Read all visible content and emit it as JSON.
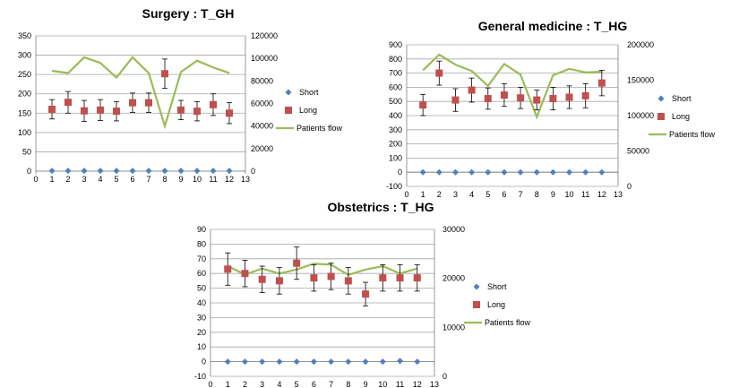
{
  "colors": {
    "short": "#4f81bd",
    "long": "#c0504d",
    "flow": "#9bbb59",
    "grid": "#a6a6a6",
    "axis": "#808080",
    "errorbar": "#000000"
  },
  "chart_data": [
    {
      "type": "scatter",
      "title": "Surgery : T_GH",
      "x": [
        1,
        2,
        3,
        4,
        5,
        6,
        7,
        8,
        9,
        10,
        11,
        12
      ],
      "xlim": [
        0,
        13
      ],
      "xticks": [
        "0",
        "1",
        "2",
        "3",
        "4",
        "5",
        "6",
        "7",
        "8",
        "9",
        "10",
        "11",
        "12",
        "13"
      ],
      "ylim": [
        0,
        350
      ],
      "yticks": [
        "0",
        "50",
        "100",
        "150",
        "200",
        "250",
        "300",
        "350"
      ],
      "y2lim": [
        0,
        120000
      ],
      "y2ticks": [
        "0",
        "20000",
        "40000",
        "60000",
        "80000",
        "100000",
        "120000"
      ],
      "legend": "right",
      "series": [
        {
          "name": "Short",
          "axis": "left",
          "marker": "diamond",
          "values": [
            1,
            1,
            1,
            1,
            1,
            1,
            1,
            1,
            1,
            1,
            1,
            1
          ]
        },
        {
          "name": "Long",
          "axis": "left",
          "marker": "square",
          "values": [
            160,
            178,
            156,
            158,
            155,
            177,
            177,
            252,
            158,
            155,
            172,
            150
          ],
          "errors": [
            25,
            28,
            27,
            27,
            25,
            25,
            25,
            38,
            25,
            25,
            28,
            27
          ]
        },
        {
          "name": "Patients flow",
          "axis": "right",
          "marker": "line",
          "values": [
            89000,
            87000,
            101000,
            96000,
            83000,
            101000,
            87000,
            40000,
            88000,
            98000,
            92000,
            87000
          ]
        }
      ]
    },
    {
      "type": "scatter",
      "title": "General medicine : T_HG",
      "x": [
        1,
        2,
        3,
        4,
        5,
        6,
        7,
        8,
        9,
        10,
        11,
        12
      ],
      "xlim": [
        0,
        13
      ],
      "xticks": [
        "0",
        "1",
        "2",
        "3",
        "4",
        "5",
        "6",
        "7",
        "8",
        "9",
        "10",
        "11",
        "12",
        "13"
      ],
      "ylim": [
        -100,
        900
      ],
      "yticks": [
        "-100",
        "0",
        "100",
        "200",
        "300",
        "400",
        "500",
        "600",
        "700",
        "800",
        "900"
      ],
      "y2lim": [
        0,
        200000
      ],
      "y2ticks": [
        "0",
        "50000",
        "100000",
        "150000",
        "200000"
      ],
      "y2ticksAt": [
        0,
        50000,
        100000,
        150000,
        200000
      ],
      "y2range": [
        0,
        200000
      ],
      "legend": "right",
      "series": [
        {
          "name": "Short",
          "axis": "left",
          "marker": "diamond",
          "values": [
            0,
            0,
            0,
            0,
            0,
            0,
            0,
            0,
            0,
            0,
            0,
            0
          ]
        },
        {
          "name": "Long",
          "axis": "left",
          "marker": "square",
          "values": [
            475,
            700,
            510,
            580,
            520,
            545,
            525,
            510,
            520,
            530,
            540,
            630
          ],
          "errors": [
            75,
            85,
            80,
            85,
            75,
            80,
            75,
            70,
            80,
            80,
            85,
            90
          ]
        },
        {
          "name": "Patients flow",
          "axis": "right",
          "marker": "line",
          "values": [
            164000,
            186000,
            172000,
            163000,
            142000,
            173000,
            158000,
            98000,
            157000,
            166000,
            161000,
            162000
          ]
        }
      ]
    },
    {
      "type": "scatter",
      "title": "Obstetrics : T_HG",
      "x": [
        1,
        2,
        3,
        4,
        5,
        6,
        7,
        8,
        9,
        10,
        11,
        12
      ],
      "xlim": [
        0,
        13
      ],
      "xticks": [
        "0",
        "1",
        "2",
        "3",
        "4",
        "5",
        "6",
        "7",
        "8",
        "9",
        "10",
        "11",
        "12",
        "13"
      ],
      "ylim": [
        -10,
        90
      ],
      "yticks": [
        "-10",
        "0",
        "10",
        "20",
        "30",
        "40",
        "50",
        "60",
        "70",
        "80",
        "90"
      ],
      "y2lim": [
        0,
        30000
      ],
      "y2ticks": [
        "0",
        "10000",
        "20000",
        "30000"
      ],
      "legend": "right",
      "series": [
        {
          "name": "Short",
          "axis": "left",
          "marker": "diamond",
          "values": [
            0,
            0,
            0,
            0,
            0,
            0,
            0,
            0,
            0,
            0,
            0.5,
            0
          ]
        },
        {
          "name": "Long",
          "axis": "left",
          "marker": "square",
          "values": [
            63,
            60,
            56,
            55,
            67,
            57,
            58,
            55,
            46,
            57,
            57,
            57
          ],
          "errors": [
            11,
            9,
            9,
            9,
            11,
            9,
            9,
            9,
            8,
            9,
            9,
            9
          ]
        },
        {
          "name": "Patients flow",
          "axis": "right",
          "marker": "line",
          "values": [
            22500,
            20800,
            22000,
            21000,
            21800,
            23000,
            22800,
            20700,
            21800,
            22500,
            21000,
            22000
          ]
        }
      ]
    }
  ]
}
